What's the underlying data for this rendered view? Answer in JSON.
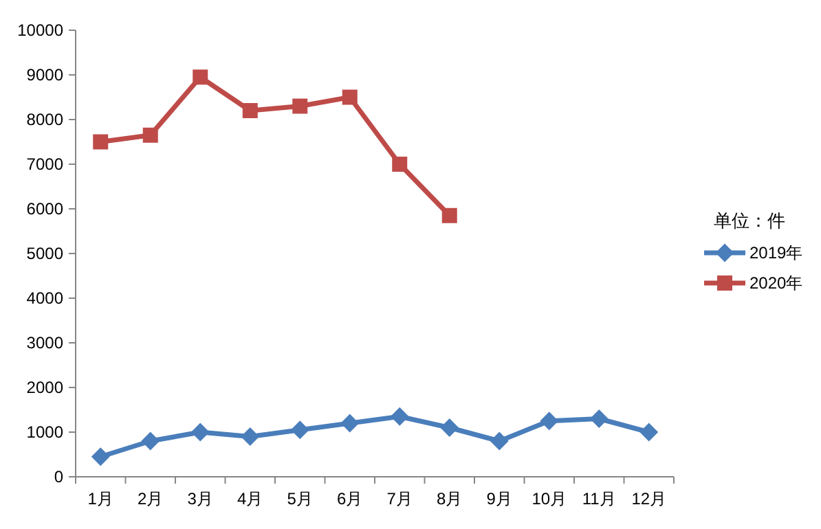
{
  "chart_data": {
    "type": "line",
    "categories": [
      "1月",
      "2月",
      "3月",
      "4月",
      "5月",
      "6月",
      "7月",
      "8月",
      "9月",
      "10月",
      "11月",
      "12月"
    ],
    "ylim": [
      0,
      10000
    ],
    "yticks": [
      0,
      1000,
      2000,
      3000,
      4000,
      5000,
      6000,
      7000,
      8000,
      9000,
      10000
    ],
    "legend": "right",
    "legend_title": "单位：件",
    "grid": false,
    "line_style": "solid",
    "series": [
      {
        "name": "2019年",
        "color": "#4a7ebb",
        "marker": "diamond",
        "values": [
          450,
          800,
          1000,
          900,
          1050,
          1200,
          1350,
          1100,
          800,
          1250,
          1300,
          1000
        ]
      },
      {
        "name": "2020年",
        "color": "#be4b48",
        "marker": "square",
        "values": [
          7500,
          7650,
          8950,
          8200,
          8300,
          8500,
          7000,
          5850,
          null,
          null,
          null,
          null
        ]
      }
    ]
  }
}
